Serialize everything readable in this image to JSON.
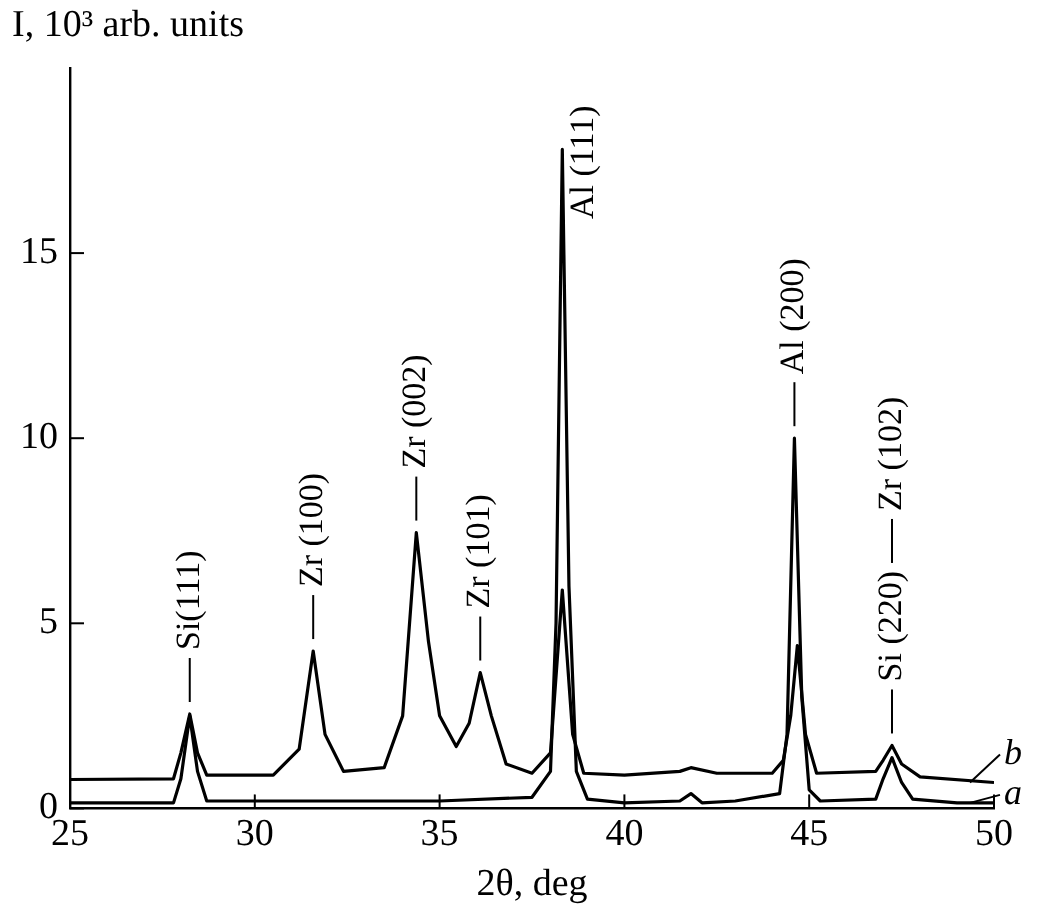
{
  "chart_data": {
    "type": "line",
    "xlabel": "2θ, deg",
    "ylabel": "I, 10³ arb. units",
    "xlim": [
      25,
      50
    ],
    "xticks": [
      25,
      30,
      35,
      40,
      45,
      50
    ],
    "ylim": [
      0,
      20
    ],
    "yticks": [
      0,
      5,
      10,
      15
    ],
    "grid": false,
    "legend": "bottom right",
    "marker": "none",
    "line_style": "solid",
    "series": [
      {
        "name": "a",
        "color": "#000000",
        "x": [
          25,
          27.8,
          28.0,
          28.24,
          28.45,
          28.7,
          31,
          35,
          37.5,
          38.0,
          38.15,
          38.32,
          38.5,
          38.7,
          39,
          40,
          41.5,
          41.8,
          42.1,
          43,
          44.2,
          44.4,
          44.6,
          44.8,
          45.0,
          45.3,
          46.8,
          47.0,
          47.24,
          47.5,
          47.8,
          49,
          50
        ],
        "values": [
          0.15,
          0.15,
          0.8,
          2.5,
          1.0,
          0.2,
          0.2,
          0.2,
          0.3,
          1.0,
          5,
          17.8,
          6,
          1.0,
          0.25,
          0.15,
          0.2,
          0.4,
          0.15,
          0.2,
          0.4,
          2,
          10.0,
          3,
          0.5,
          0.2,
          0.25,
          0.8,
          1.37,
          0.7,
          0.25,
          0.15,
          0.15
        ]
      },
      {
        "name": "b",
        "color": "#000000",
        "x": [
          25,
          27.8,
          28.0,
          28.24,
          28.45,
          28.7,
          30.5,
          31.2,
          31.58,
          31.9,
          32.4,
          33.5,
          34.0,
          34.37,
          34.7,
          35.0,
          35.45,
          35.8,
          36.1,
          36.4,
          36.8,
          37.5,
          38.0,
          38.32,
          38.6,
          38.9,
          40,
          41.5,
          41.8,
          42.5,
          44,
          44.3,
          44.5,
          44.68,
          44.9,
          45.2,
          46.8,
          47.0,
          47.24,
          47.5,
          48,
          50
        ],
        "values": [
          0.78,
          0.8,
          1.5,
          2.55,
          1.5,
          0.9,
          0.9,
          1.6,
          4.25,
          2.0,
          1.0,
          1.1,
          2.5,
          7.45,
          4.5,
          2.5,
          1.67,
          2.3,
          3.67,
          2.5,
          1.2,
          0.95,
          1.5,
          5.9,
          2,
          0.95,
          0.9,
          1.0,
          1.1,
          0.95,
          0.95,
          1.3,
          2.5,
          4.4,
          2.0,
          0.95,
          1.0,
          1.3,
          1.7,
          1.2,
          0.85,
          0.7
        ]
      }
    ],
    "annotations": [
      {
        "text": "Si(111)",
        "x": 28.24,
        "y": 2.55
      },
      {
        "text": "Zr (100)",
        "x": 31.58,
        "y": 4.25
      },
      {
        "text": "Zr (002)",
        "x": 34.37,
        "y": 7.45
      },
      {
        "text": "Zr (101)",
        "x": 36.1,
        "y": 3.67
      },
      {
        "text": "Al (111)",
        "x": 38.32,
        "y": 17.8
      },
      {
        "text": "Al (200)",
        "x": 44.6,
        "y": 10.0
      },
      {
        "text": "Si (220)",
        "x": 47.24,
        "y": 1.7
      },
      "Zr (102)"
    ]
  }
}
